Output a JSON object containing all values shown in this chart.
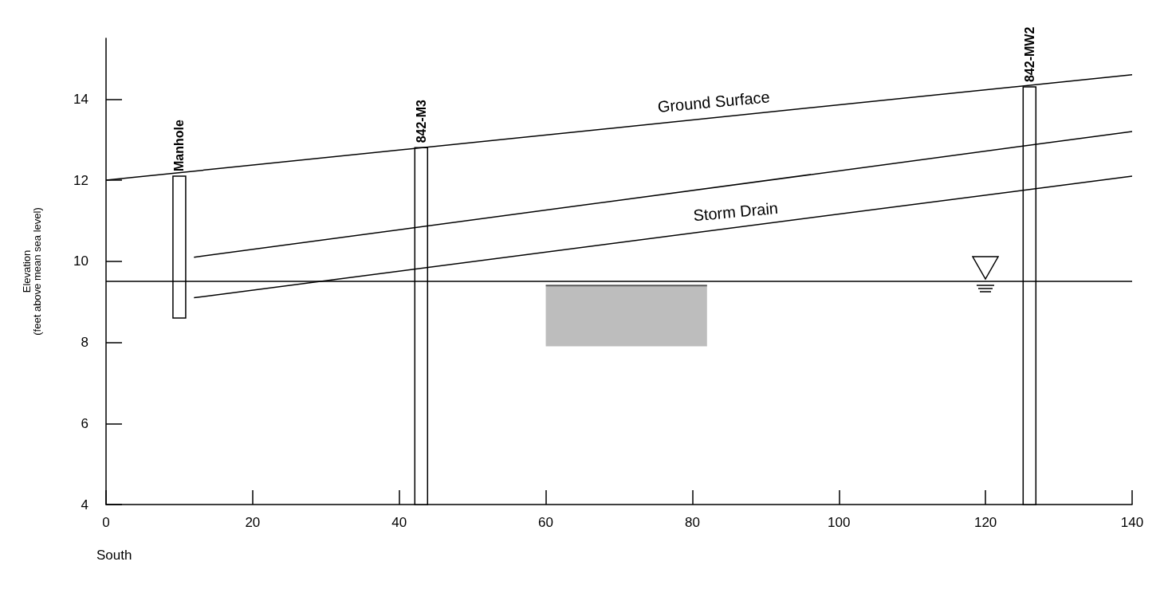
{
  "chart_data": {
    "type": "line",
    "ylabel": "Elevation\n(feet above mean sea level)",
    "xlabel": "South",
    "xlim": [
      0,
      140
    ],
    "xticks": [
      0,
      20,
      40,
      60,
      80,
      100,
      120,
      140
    ],
    "ylim": [
      4,
      15.5
    ],
    "yticks": [
      4,
      6,
      8,
      10,
      12,
      14
    ],
    "grid": false,
    "marker": "none",
    "series": [
      {
        "color": "#000000",
        "x": [
          0,
          140
        ],
        "values": [
          12.0,
          14.6
        ]
      },
      {
        "color": "#000000",
        "x": [
          12,
          140
        ],
        "values": [
          10.1,
          13.2
        ]
      },
      {
        "color": "#000000",
        "x": [
          12,
          140
        ],
        "values": [
          9.1,
          12.1
        ]
      },
      {
        "type": "line",
        "color": "#5a5a5a",
        "x": [
          60,
          82
        ],
        "values": [
          9.4,
          9.4
        ],
        "lower": [
          7.9,
          7.9
        ],
        "upper": [
          9.4,
          9.4
        ]
      },
      {
        "type": "bar",
        "color": "#000000",
        "x": [
          10,
          43,
          126
        ],
        "base": [
          8.6,
          4,
          4
        ],
        "values": [
          3.5,
          8.8,
          10.3
        ]
      }
    ],
    "ref_lines": [
      {
        "axis": "y",
        "value": 9.5,
        "color": "#000000"
      }
    ],
    "annotations": [
      {
        "text": "Ground Surface",
        "x": 83,
        "y": 13.54
      },
      {
        "text": "Storm Drain",
        "x": 86,
        "y": 10.83
      },
      {
        "text": "Manhole",
        "x": 10,
        "y": 12.1
      },
      {
        "text": "842-M3",
        "x": 43,
        "y": 12.8
      },
      {
        "text": "842-MW2",
        "x": 126,
        "y": 14.3
      }
    ]
  }
}
